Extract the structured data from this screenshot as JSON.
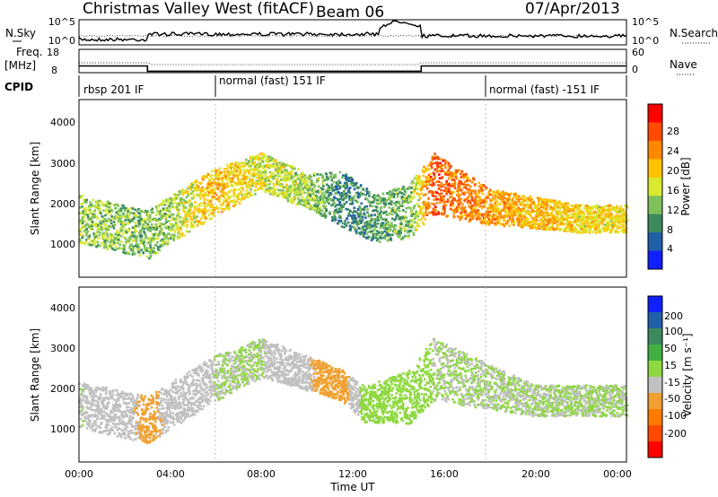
{
  "header": {
    "title": "Christmas Valley West (fitACF)",
    "beam": "Beam 06",
    "date": "07/Apr/2013"
  },
  "strips": {
    "nsky_label": "N.Sky",
    "nsky_ticks": [
      "10^5",
      "10^0"
    ],
    "nsearch_label": "N.Search",
    "nsearch_ticks": [
      "10^5",
      "10^0"
    ],
    "freq_label": [
      "Freq.",
      "[MHz]"
    ],
    "freq_ticks": [
      "18",
      "8"
    ],
    "nave_label": "Nave",
    "nave_ticks": [
      "60",
      "0"
    ],
    "cpid_label": "CPID",
    "cpid_segments": [
      {
        "text": "rbsp 201 IF",
        "start_hour": 0
      },
      {
        "text": "normal (fast) 151 IF",
        "start_hour": 6
      },
      {
        "text": "normal (fast) -151 IF",
        "start_hour": 18
      }
    ],
    "freq_mhz": [
      {
        "from": 0,
        "to": 3,
        "value": 10.9
      },
      {
        "from": 3,
        "to": 15,
        "value": 8.6
      },
      {
        "from": 15,
        "to": 24,
        "value": 10.9
      }
    ]
  },
  "chart_data": [
    {
      "type": "heatmap",
      "ylabel": "Slant Range [km]",
      "yticks": [
        "4000",
        "3000",
        "2000",
        "1000"
      ],
      "ylim": [
        0,
        4500
      ],
      "xlim": [
        0,
        24
      ],
      "colorbar_label": "Power [dB]",
      "colorbar_ticks": [
        "28",
        "24",
        "20",
        "16",
        "12",
        "8",
        "4"
      ],
      "colorbar_colors": [
        "#ff0000",
        "#ff4a00",
        "#ff8800",
        "#ffc200",
        "#d9e830",
        "#7ec15a",
        "#3c8a5e",
        "#2060a8",
        "#1020ff"
      ],
      "colorbar_min": 0,
      "colorbar_max": 32,
      "series": [
        {
          "values": [
            [
              0,
              1500,
              1200,
              14
            ],
            [
              3,
              1100,
              1200,
              12
            ],
            [
              4,
              1500,
              1200,
              14
            ],
            [
              6,
              2200,
              1200,
              20
            ],
            [
              8,
              2700,
              1000,
              16
            ],
            [
              10,
              2200,
              900,
              14
            ],
            [
              11.5,
              2000,
              1400,
              8
            ],
            [
              13,
              1500,
              1200,
              10
            ],
            [
              14.5,
              1700,
              1400,
              12
            ],
            [
              15.5,
              2400,
              1600,
              26
            ],
            [
              18,
              1800,
              900,
              22
            ],
            [
              22,
              1500,
              700,
              18
            ]
          ]
        }
      ]
    },
    {
      "type": "heatmap",
      "ylabel": "Slant Range [km]",
      "yticks": [
        "4000",
        "3000",
        "2000",
        "1000"
      ],
      "ylim": [
        0,
        4500
      ],
      "xlim": [
        0,
        24
      ],
      "xlabel": "Time UT",
      "xticks": [
        "00:00",
        "04:00",
        "08:00",
        "12:00",
        "16:00",
        "20:00",
        "00:00"
      ],
      "colorbar_label": "Velocity [m s⁻¹]",
      "colorbar_ticks": [
        "200",
        "100",
        "50",
        "15",
        "-15",
        "-50",
        "-100",
        "-200"
      ],
      "colorbar_colors": [
        "#1020ff",
        "#2060a8",
        "#3c8a5e",
        "#40b040",
        "#8ed840",
        "#c0c0c0",
        "#f0a030",
        "#ff7a00",
        "#ff4a00",
        "#ff0000"
      ],
      "colorbar_min": -250,
      "colorbar_max": 250,
      "series": [
        {
          "values": [
            [
              0,
              1500,
              1200,
              0
            ],
            [
              3,
              1100,
              1200,
              -60
            ],
            [
              6,
              2200,
              1200,
              0
            ],
            [
              8,
              2700,
              1000,
              0
            ],
            [
              11.5,
              2000,
              800,
              -80
            ],
            [
              12.5,
              1500,
              900,
              20
            ],
            [
              14.5,
              1700,
              1400,
              30
            ],
            [
              15.5,
              2400,
              1600,
              0
            ],
            [
              20,
              1600,
              800,
              0
            ]
          ]
        }
      ]
    }
  ]
}
